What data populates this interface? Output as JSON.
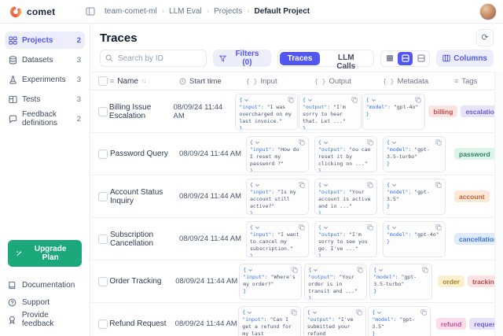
{
  "topbar": {
    "logo": "comet",
    "breadcrumb": [
      "team-comet-ml",
      "LLM Eval",
      "Projects",
      "Default Project"
    ]
  },
  "sidebar": {
    "items": [
      {
        "label": "Projects",
        "count": "2",
        "icon": "grid-icon"
      },
      {
        "label": "Datasets",
        "count": "3",
        "icon": "database-icon"
      },
      {
        "label": "Experiments",
        "count": "3",
        "icon": "flask-icon"
      },
      {
        "label": "Tests",
        "count": "3",
        "icon": "board-icon"
      },
      {
        "label": "Feedback definitions",
        "count": "2",
        "icon": "speech-bubble-icon"
      }
    ],
    "upgrade_label": "Upgrade Plan",
    "links": [
      {
        "label": "Documentation",
        "icon": "book-icon"
      },
      {
        "label": "Support",
        "icon": "chat-icon"
      },
      {
        "label": "Provide feedback",
        "icon": "badge-icon"
      }
    ]
  },
  "toolbar": {
    "title": "Traces",
    "search_placeholder": "Search by ID",
    "filters_label": "Filters (0)",
    "tab_traces": "Traces",
    "tab_llm_calls": "LLM Calls",
    "columns_label": "Columns"
  },
  "glyphs": {
    "refresh": "⟳",
    "crumb_sep": "›",
    "list": "≡",
    "sort": "↑↓",
    "braces": "{ }"
  },
  "json_syntax": {
    "open": "{",
    "close": "}"
  },
  "table": {
    "headers": {
      "name": "Name",
      "start_time": "Start time",
      "input": "Input",
      "output": "Output",
      "metadata": "Metadata",
      "tags": "Tags"
    },
    "rows": [
      {
        "name": "Billing Issue Escalation",
        "time": "08/09/24 11:44 AM",
        "input": {
          "key": "\"input\": ",
          "value": "\"I was overcharged on my last invoice.\""
        },
        "output": {
          "key": "\"output\": ",
          "value": "\"I'm sorry to hear that. Let ...\""
        },
        "metadata": {
          "key": "\"model\": ",
          "value": "\"gpt-4o\""
        },
        "tags": [
          {
            "label": "billing",
            "color": "red"
          },
          {
            "label": "escalation",
            "color": "purple"
          }
        ]
      },
      {
        "name": "Password Query",
        "time": "08/09/24 11:44 AM",
        "input": {
          "key": "\"input\": ",
          "value": "\"How do I reset my password ?\""
        },
        "output": {
          "key": "\"output\": ",
          "value": "\"ou can reset it by clicking on ...\""
        },
        "metadata": {
          "key": "\"model\": ",
          "value": "\"gpt-3.5-turbo\""
        },
        "tags": [
          {
            "label": "password",
            "color": "green"
          }
        ]
      },
      {
        "name": "Account Status Inquiry",
        "time": "08/09/24 11:44 AM",
        "input": {
          "key": "\"input\": ",
          "value": "\"Is my account still active?\""
        },
        "output": {
          "key": "\"output\": ",
          "value": "\"Your account is active and in ...\""
        },
        "metadata": {
          "key": "\"model\": ",
          "value": "\"gpt-3.5\""
        },
        "tags": [
          {
            "label": "account",
            "color": "orange"
          }
        ]
      },
      {
        "name": "Subscription Cancellation",
        "time": "08/09/24 11:44 AM",
        "input": {
          "key": "\"input\": ",
          "value": "\"I want to cancel my subscription.\""
        },
        "output": {
          "key": "\"output\": ",
          "value": "\"I'm sorry to see you go. I've ...\""
        },
        "metadata": {
          "key": "\"model\": ",
          "value": "\"gpt-4o\""
        },
        "tags": [
          {
            "label": "cancellation",
            "color": "blue"
          }
        ]
      },
      {
        "name": "Order Tracking",
        "time": "08/09/24 11:44 AM",
        "input": {
          "key": "\"input\": ",
          "value": "\"Where's my order?\""
        },
        "output": {
          "key": "\"output\": ",
          "value": "\"Your order is in transit and ...\""
        },
        "metadata": {
          "key": "\"model\": ",
          "value": "\"gpt-3.5-turbo\""
        },
        "tags": [
          {
            "label": "order",
            "color": "yellow"
          },
          {
            "label": "tracking",
            "color": "red"
          }
        ]
      },
      {
        "name": "Refund Request",
        "time": "08/09/24 11:44 AM",
        "input": {
          "key": "\"input\": ",
          "value": "\"Can I get a refund for my last purchase?\""
        },
        "output": {
          "key": "\"output\": ",
          "value": "\"I've submitted your refund request...\""
        },
        "metadata": {
          "key": "\"model\": ",
          "value": "\"gpt-3.5\""
        },
        "tags": [
          {
            "label": "refund",
            "color": "pink"
          },
          {
            "label": "request",
            "color": "purple"
          }
        ]
      }
    ]
  },
  "colors": {
    "accent": "#5357F2",
    "accent_light": "#EDEEFC",
    "upgrade_green": "#1BA97C",
    "json_key_blue": "#3473DE"
  }
}
